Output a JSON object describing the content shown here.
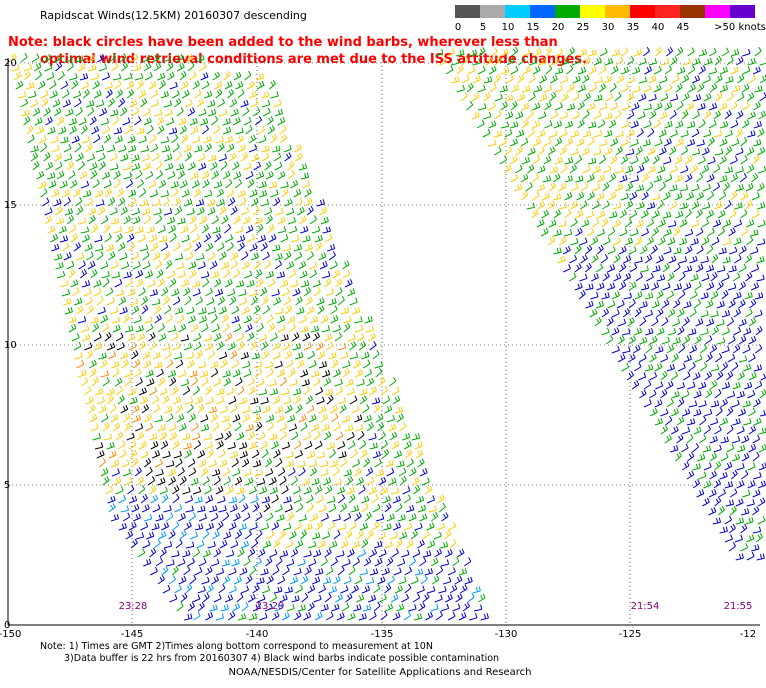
{
  "title": "Rapidscat Winds(12.5KM) 20160307 descending",
  "note": {
    "line1": "Note: black circles have been added to the wind barbs, wherever less than",
    "line2": "optimal wind retrieval conditions are met due to the ISS attitude changes."
  },
  "legend": {
    "unit": "knots",
    "labels": [
      "0",
      "5",
      "10",
      "15",
      "20",
      "25",
      "30",
      "35",
      "40",
      "45",
      ">50 knots"
    ],
    "colors": [
      "#555555",
      "#aaaaaa",
      "#00ccff",
      "#0066ff",
      "#00aa00",
      "#ffff00",
      "#ffbb00",
      "#ff0000",
      "#ff2222",
      "#993300",
      "#ff00ff",
      "#6600cc"
    ]
  },
  "axes": {
    "lon_ticks": [
      "-150",
      "-145",
      "-140",
      "-135",
      "-130",
      "-125",
      "-12"
    ],
    "lat_ticks": [
      "0",
      "5",
      "10",
      "15",
      "20"
    ]
  },
  "swath_times": [
    "23:28",
    "23:29",
    "21:54",
    "21:55"
  ],
  "barb_colors": {
    "green": "#00aa00",
    "yellow": "#ffcc00",
    "blue": "#0000cc",
    "cyan": "#0099ff",
    "orange": "#ff8800",
    "black": "#000000"
  },
  "footnote": {
    "line1": "Note: 1) Times are GMT 2)Times along bottom correspond to measurement at 10N",
    "line2": "3)Data buffer is 22 hrs from 20160307 4) Black wind barbs indicate possible contamination"
  },
  "credit": "NOAA/NESDIS/Center for Satellite Applications and Research"
}
